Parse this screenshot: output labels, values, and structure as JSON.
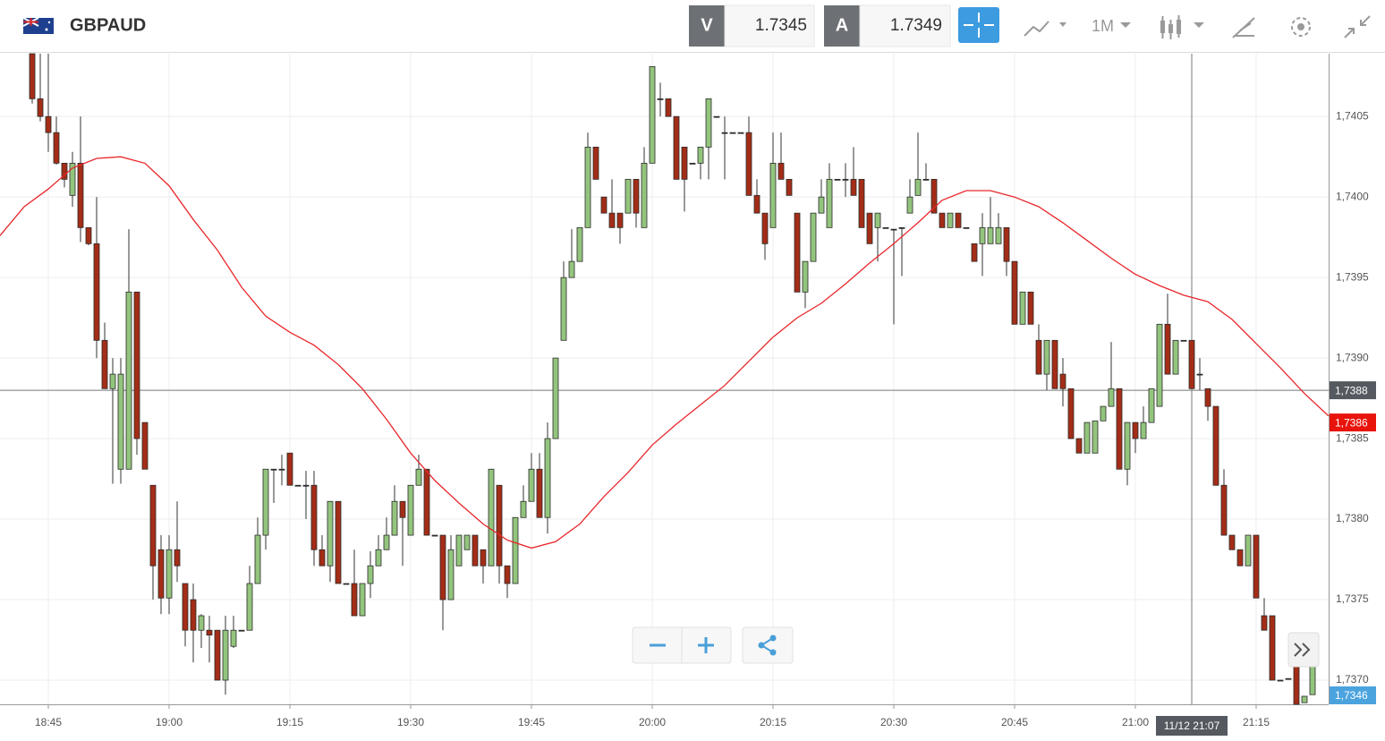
{
  "header": {
    "symbol": "GBPAUD",
    "sell_label": "V",
    "sell_price": "1.7345",
    "buy_label": "A",
    "buy_price": "1.7349",
    "timeframe": "1M"
  },
  "chart_data": {
    "type": "candlestick",
    "up_color": "#93c47d",
    "down_color": "#a32d17",
    "x": [
      "18:43",
      "18:44",
      "18:45",
      "18:46",
      "18:47",
      "18:48",
      "18:49",
      "18:50",
      "18:51",
      "18:52",
      "18:53",
      "18:54",
      "18:55",
      "18:56",
      "18:57",
      "18:58",
      "18:59",
      "19:00",
      "19:01",
      "19:02",
      "19:03",
      "19:04",
      "19:05",
      "19:06",
      "19:07",
      "19:08",
      "19:09",
      "19:10",
      "19:11",
      "19:12",
      "19:13",
      "19:14",
      "19:15",
      "19:16",
      "19:17",
      "19:18",
      "19:19",
      "19:20",
      "19:21",
      "19:22",
      "19:23",
      "19:24",
      "19:25",
      "19:26",
      "19:27",
      "19:28",
      "19:29",
      "19:30",
      "19:31",
      "19:32",
      "19:33",
      "19:34",
      "19:35",
      "19:36",
      "19:37",
      "19:38",
      "19:39",
      "19:40",
      "19:41",
      "19:42",
      "19:43",
      "19:44",
      "19:45",
      "19:46",
      "19:47",
      "19:48",
      "19:49",
      "19:50",
      "19:51",
      "19:52",
      "19:53",
      "19:54",
      "19:55",
      "19:56",
      "19:57",
      "19:58",
      "19:59",
      "20:00",
      "20:01",
      "20:02",
      "20:03",
      "20:04",
      "20:05",
      "20:06",
      "20:07",
      "20:08",
      "20:09",
      "20:10",
      "20:11",
      "20:12",
      "20:13",
      "20:14",
      "20:15",
      "20:16",
      "20:17",
      "20:18",
      "20:19",
      "20:20",
      "20:21",
      "20:22",
      "20:23",
      "20:24",
      "20:25",
      "20:26",
      "20:27",
      "20:28",
      "20:29",
      "20:30",
      "20:31",
      "20:32",
      "20:33",
      "20:34",
      "20:35",
      "20:36",
      "20:37",
      "20:38",
      "20:39",
      "20:40",
      "20:41",
      "20:42",
      "20:43",
      "20:44",
      "20:45",
      "20:46",
      "20:47",
      "20:48",
      "20:49",
      "20:50",
      "20:51",
      "20:52",
      "20:53",
      "20:54",
      "20:55",
      "20:56",
      "20:57",
      "20:58",
      "20:59",
      "21:00",
      "21:01",
      "21:02",
      "21:03",
      "21:04",
      "21:05",
      "21:06",
      "21:07",
      "21:08",
      "21:09",
      "21:10",
      "21:11",
      "21:12",
      "21:13",
      "21:14",
      "21:15",
      "21:16",
      "21:17",
      "21:18",
      "21:19",
      "21:20",
      "21:21",
      "21:22"
    ],
    "open": [
      1.74089,
      1.74061,
      1.7405,
      1.7404,
      1.74021,
      1.74001,
      1.74021,
      1.73981,
      1.73971,
      1.73911,
      1.73881,
      1.73831,
      1.73831,
      1.73941,
      1.7386,
      1.73821,
      1.73781,
      1.73751,
      1.73781,
      1.7376,
      1.7375,
      1.73731,
      1.73731,
      1.73731,
      1.737,
      1.73721,
      1.73731,
      1.73731,
      1.7376,
      1.7379,
      1.73831,
      1.73831,
      1.73841,
      1.73821,
      1.73821,
      1.73821,
      1.73781,
      1.73771,
      1.73811,
      1.7376,
      1.7376,
      1.7374,
      1.7376,
      1.73771,
      1.73781,
      1.7379,
      1.73811,
      1.7379,
      1.73821,
      1.73831,
      1.7379,
      1.7379,
      1.7375,
      1.73771,
      1.73781,
      1.7379,
      1.73781,
      1.73771,
      1.73821,
      1.73771,
      1.7376,
      1.73801,
      1.73811,
      1.73831,
      1.73801,
      1.7385,
      1.73911,
      1.7395,
      1.7396,
      1.73981,
      1.74031,
      1.74,
      1.7399,
      1.7399,
      1.7399,
      1.74011,
      1.73981,
      1.74021,
      1.74061,
      1.74061,
      1.7405,
      1.74031,
      1.74021,
      1.74021,
      1.74031,
      1.7405,
      1.7404,
      1.7404,
      1.7404,
      1.7404,
      1.74001,
      1.7399,
      1.73981,
      1.74021,
      1.74011,
      1.7399,
      1.73941,
      1.7396,
      1.7399,
      1.73981,
      1.74011,
      1.74011,
      1.74011,
      1.74011,
      1.7399,
      1.73981,
      1.73981,
      1.7398,
      1.73981,
      1.7399,
      1.74001,
      1.74011,
      1.74011,
      1.7399,
      1.73981,
      1.7399,
      1.73981,
      1.73971,
      1.73971,
      1.73971,
      1.73971,
      1.73981,
      1.7396,
      1.73921,
      1.73941,
      1.73911,
      1.7389,
      1.73911,
      1.7389,
      1.73881,
      1.7385,
      1.73841,
      1.73841,
      1.73861,
      1.7387,
      1.73881,
      1.73831,
      1.7386,
      1.7385,
      1.7386,
      1.7387,
      1.73921,
      1.7389,
      1.73911,
      1.73911,
      1.7389,
      1.73881,
      1.7387,
      1.73821,
      1.7379,
      1.73781,
      1.73771,
      1.7379,
      1.7374,
      1.7374,
      1.737,
      1.73701,
      1.73711,
      1.73686,
      1.73691
    ],
    "high": [
      1.74089,
      1.74089,
      1.74089,
      1.7405,
      1.74021,
      1.74028,
      1.7405,
      1.73981,
      1.74,
      1.73922,
      1.739,
      1.739,
      1.7398,
      1.73941,
      1.7386,
      1.73821,
      1.7379,
      1.7379,
      1.73811,
      1.7376,
      1.7376,
      1.73741,
      1.7374,
      1.73731,
      1.7374,
      1.7374,
      1.73731,
      1.73771,
      1.73801,
      1.73831,
      1.73831,
      1.7384,
      1.73841,
      1.73821,
      1.7383,
      1.7383,
      1.7379,
      1.73811,
      1.73811,
      1.7376,
      1.73781,
      1.7376,
      1.7378,
      1.7379,
      1.73801,
      1.73821,
      1.73811,
      1.73821,
      1.7384,
      1.73831,
      1.7379,
      1.7379,
      1.7379,
      1.7379,
      1.7379,
      1.7379,
      1.73781,
      1.73831,
      1.73821,
      1.73771,
      1.73801,
      1.73821,
      1.73841,
      1.73841,
      1.7386,
      1.739,
      1.7396,
      1.7398,
      1.73981,
      1.7404,
      1.74031,
      1.74,
      1.74011,
      1.7399,
      1.74011,
      1.74011,
      1.74031,
      1.74081,
      1.74071,
      1.74061,
      1.7405,
      1.74031,
      1.74021,
      1.74031,
      1.74061,
      1.7405,
      1.7405,
      1.7404,
      1.7404,
      1.7405,
      1.74011,
      1.7399,
      1.7404,
      1.7404,
      1.74011,
      1.7399,
      1.7396,
      1.7399,
      1.74011,
      1.74021,
      1.74011,
      1.74021,
      1.74031,
      1.74011,
      1.7399,
      1.7399,
      1.73981,
      1.7398,
      1.73981,
      1.74011,
      1.7404,
      1.74021,
      1.74011,
      1.7399,
      1.7399,
      1.7399,
      1.73981,
      1.73971,
      1.7399,
      1.74,
      1.7399,
      1.73981,
      1.7396,
      1.73941,
      1.73941,
      1.73921,
      1.73911,
      1.73911,
      1.739,
      1.73881,
      1.7385,
      1.7386,
      1.73861,
      1.7387,
      1.7391,
      1.73881,
      1.7386,
      1.7386,
      1.7387,
      1.73881,
      1.73921,
      1.7394,
      1.73911,
      1.73911,
      1.73911,
      1.739,
      1.73881,
      1.7387,
      1.73831,
      1.7379,
      1.73781,
      1.7379,
      1.7379,
      1.73751,
      1.7374,
      1.737,
      1.73701,
      1.73711,
      1.7369,
      1.73721
    ],
    "low": [
      1.74058,
      1.74047,
      1.74028,
      1.7402,
      1.74006,
      1.73994,
      1.73972,
      1.7397,
      1.739,
      1.73881,
      1.73822,
      1.73822,
      1.73831,
      1.7384,
      1.73831,
      1.7375,
      1.73741,
      1.73741,
      1.73761,
      1.73721,
      1.73711,
      1.7372,
      1.73711,
      1.737,
      1.73691,
      1.7372,
      1.73731,
      1.73731,
      1.7376,
      1.73781,
      1.7381,
      1.73821,
      1.73821,
      1.73821,
      1.738,
      1.73771,
      1.73771,
      1.73761,
      1.7376,
      1.7376,
      1.7374,
      1.7374,
      1.73751,
      1.73771,
      1.73781,
      1.7379,
      1.73771,
      1.7379,
      1.73821,
      1.7379,
      1.7379,
      1.73731,
      1.7375,
      1.73771,
      1.73781,
      1.73771,
      1.7376,
      1.73771,
      1.7376,
      1.73751,
      1.7376,
      1.73801,
      1.73811,
      1.73801,
      1.73791,
      1.7385,
      1.73911,
      1.7395,
      1.7396,
      1.73981,
      1.74011,
      1.7399,
      1.73981,
      1.73971,
      1.7399,
      1.73981,
      1.73981,
      1.74021,
      1.7405,
      1.7405,
      1.74011,
      1.73991,
      1.74021,
      1.74011,
      1.74011,
      1.7405,
      1.74011,
      1.7404,
      1.7404,
      1.74001,
      1.7399,
      1.73961,
      1.73981,
      1.74011,
      1.74001,
      1.73941,
      1.73931,
      1.7396,
      1.7399,
      1.73981,
      1.74011,
      1.74,
      1.74001,
      1.73981,
      1.73971,
      1.7396,
      1.73981,
      1.73921,
      1.73951,
      1.7399,
      1.74001,
      1.74011,
      1.7399,
      1.73981,
      1.73981,
      1.73981,
      1.73981,
      1.7396,
      1.73951,
      1.73971,
      1.73971,
      1.73951,
      1.73921,
      1.73921,
      1.73921,
      1.7389,
      1.7388,
      1.73881,
      1.7387,
      1.7385,
      1.73841,
      1.73841,
      1.73841,
      1.73861,
      1.7387,
      1.73831,
      1.73821,
      1.73841,
      1.7385,
      1.7386,
      1.7387,
      1.7389,
      1.7389,
      1.73911,
      1.73881,
      1.7388,
      1.73861,
      1.73821,
      1.7379,
      1.73781,
      1.73771,
      1.73771,
      1.73751,
      1.73731,
      1.737,
      1.737,
      1.73701,
      1.73685,
      1.73686,
      1.73691
    ],
    "close": [
      1.74061,
      1.7405,
      1.7404,
      1.74021,
      1.74011,
      1.74021,
      1.73981,
      1.73971,
      1.73911,
      1.73881,
      1.7389,
      1.7389,
      1.73941,
      1.7385,
      1.73831,
      1.73771,
      1.73751,
      1.73781,
      1.73771,
      1.73731,
      1.73731,
      1.7374,
      1.73728,
      1.737,
      1.73731,
      1.73731,
      1.73731,
      1.7376,
      1.7379,
      1.73831,
      1.73831,
      1.73831,
      1.73821,
      1.73821,
      1.73821,
      1.73781,
      1.73771,
      1.73811,
      1.7376,
      1.7376,
      1.7374,
      1.7376,
      1.73771,
      1.73781,
      1.7379,
      1.73811,
      1.73801,
      1.73821,
      1.73831,
      1.7379,
      1.7379,
      1.7375,
      1.73781,
      1.7379,
      1.7379,
      1.73771,
      1.73771,
      1.73831,
      1.73771,
      1.7376,
      1.73801,
      1.73811,
      1.73831,
      1.73801,
      1.7385,
      1.739,
      1.7395,
      1.7396,
      1.73981,
      1.74031,
      1.74011,
      1.7399,
      1.73981,
      1.73981,
      1.74011,
      1.7399,
      1.74021,
      1.74081,
      1.74061,
      1.7405,
      1.74011,
      1.74011,
      1.74021,
      1.74031,
      1.74061,
      1.7405,
      1.7404,
      1.7404,
      1.7404,
      1.74001,
      1.7399,
      1.73971,
      1.74021,
      1.74011,
      1.74001,
      1.73941,
      1.7396,
      1.7399,
      1.74,
      1.74011,
      1.74011,
      1.74011,
      1.74001,
      1.73981,
      1.73971,
      1.7399,
      1.73981,
      1.7398,
      1.73981,
      1.74,
      1.74011,
      1.74011,
      1.7399,
      1.73981,
      1.7399,
      1.73981,
      1.73981,
      1.7396,
      1.73981,
      1.73981,
      1.73981,
      1.7396,
      1.73921,
      1.73941,
      1.73921,
      1.7389,
      1.73911,
      1.73881,
      1.73881,
      1.7385,
      1.73841,
      1.7386,
      1.73861,
      1.7387,
      1.73881,
      1.73831,
      1.7386,
      1.7385,
      1.7386,
      1.73881,
      1.73921,
      1.7389,
      1.73911,
      1.73911,
      1.73881,
      1.7389,
      1.7387,
      1.73821,
      1.7379,
      1.73781,
      1.73771,
      1.7379,
      1.73751,
      1.73731,
      1.737,
      1.737,
      1.73701,
      1.73685,
      1.7369,
      1.7371
    ],
    "ma": {
      "color": "#e8262a",
      "x": [
        "18:39",
        "18:42",
        "18:45",
        "18:48",
        "18:51",
        "18:54",
        "18:57",
        "19:00",
        "19:03",
        "19:06",
        "19:09",
        "19:12",
        "19:15",
        "19:18",
        "19:21",
        "19:24",
        "19:27",
        "19:30",
        "19:33",
        "19:36",
        "19:39",
        "19:42",
        "19:45",
        "19:48",
        "19:51",
        "19:54",
        "19:57",
        "20:00",
        "20:03",
        "20:06",
        "20:09",
        "20:12",
        "20:15",
        "20:18",
        "20:21",
        "20:24",
        "20:27",
        "20:30",
        "20:33",
        "20:36",
        "20:39",
        "20:42",
        "20:45",
        "20:48",
        "20:51",
        "20:54",
        "20:57",
        "21:00",
        "21:03",
        "21:06",
        "21:09",
        "21:12",
        "21:15",
        "21:18",
        "21:21",
        "21:24"
      ],
      "values": [
        1.73976,
        1.73994,
        1.74005,
        1.74018,
        1.74024,
        1.74025,
        1.74021,
        1.74007,
        1.73986,
        1.73967,
        1.73944,
        1.73926,
        1.73916,
        1.73908,
        1.73896,
        1.73881,
        1.73862,
        1.73841,
        1.73824,
        1.7381,
        1.73797,
        1.73787,
        1.73782,
        1.73786,
        1.73797,
        1.73814,
        1.73829,
        1.73846,
        1.73859,
        1.73871,
        1.73883,
        1.73898,
        1.73913,
        1.73925,
        1.73934,
        1.73946,
        1.73959,
        1.73971,
        1.73984,
        1.73998,
        1.74004,
        1.74004,
        1.74,
        1.73994,
        1.73984,
        1.73973,
        1.73962,
        1.73952,
        1.73945,
        1.73939,
        1.73935,
        1.73924,
        1.73909,
        1.73894,
        1.73878,
        1.73864
      ]
    },
    "ylim": [
      1.73685,
      1.74089
    ],
    "yticks": [
      {
        "value": 1.737,
        "label": "1,7370"
      },
      {
        "value": 1.7375,
        "label": "1,7375"
      },
      {
        "value": 1.738,
        "label": "1,7380"
      },
      {
        "value": 1.7385,
        "label": "1,7385"
      },
      {
        "value": 1.739,
        "label": "1,7390"
      },
      {
        "value": 1.7395,
        "label": "1,7395"
      },
      {
        "value": 1.74,
        "label": "1,7400"
      },
      {
        "value": 1.7405,
        "label": "1,7405"
      }
    ],
    "xticks": [
      "18:45",
      "19:00",
      "19:15",
      "19:30",
      "19:45",
      "20:00",
      "20:15",
      "20:30",
      "20:45",
      "21:00",
      "21:15"
    ],
    "grid": true,
    "crosshair": {
      "x": "21:07",
      "x_label": "11/12 21:07",
      "y": {
        "value": 1.7388,
        "label": "1,7388"
      }
    },
    "ma_tag": {
      "value": 1.7386,
      "label": "1,7386"
    },
    "last_price_label": "1,7346"
  }
}
